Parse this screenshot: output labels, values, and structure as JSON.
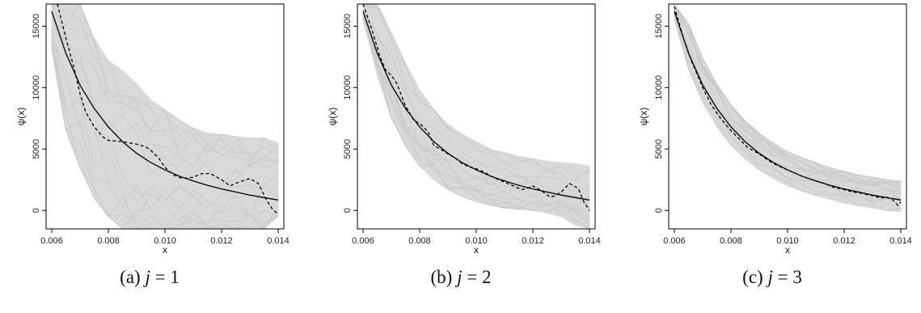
{
  "colors": {
    "band": "#d9d9d9",
    "solid_line": "#000000",
    "dashed_line": "#000000",
    "frame": "#000000"
  },
  "chart_data": [
    {
      "type": "line",
      "caption_prefix": "(a)",
      "caption_var": "j",
      "caption_eq": " = 1",
      "xlabel": "x",
      "ylabel": "ψ(x)",
      "xlim": [
        0.0058,
        0.0142
      ],
      "ylim": [
        -1500,
        16800
      ],
      "x_ticks": [
        "0.006",
        "0.008",
        "0.010",
        "0.012",
        "0.014"
      ],
      "y_ticks": [
        "0",
        "5000",
        "10000",
        "15000"
      ],
      "band_color": "#d9d9d9",
      "band_x": [
        0.006,
        0.0065,
        0.007,
        0.0075,
        0.008,
        0.0085,
        0.009,
        0.0095,
        0.01,
        0.0105,
        0.011,
        0.0115,
        0.012,
        0.0125,
        0.013,
        0.0135,
        0.014
      ],
      "band_upper": [
        16800,
        16800,
        16800,
        14000,
        12200,
        11400,
        10300,
        9000,
        8200,
        7400,
        6700,
        6300,
        6200,
        6000,
        5900,
        5900,
        5500
      ],
      "band_lower": [
        13000,
        6500,
        3500,
        1000,
        -500,
        -1500,
        -1500,
        -1500,
        -1500,
        -1500,
        -1500,
        -1500,
        -1500,
        -1500,
        -1500,
        -1500,
        -500
      ],
      "series": [
        {
          "style": "solid",
          "x": [
            0.006,
            0.0065,
            0.007,
            0.0075,
            0.008,
            0.0085,
            0.009,
            0.0095,
            0.01,
            0.0105,
            0.011,
            0.0115,
            0.012,
            0.0125,
            0.013,
            0.0135,
            0.014
          ],
          "y": [
            16200,
            12800,
            10200,
            8300,
            6800,
            5600,
            4650,
            3900,
            3300,
            2800,
            2400,
            2050,
            1750,
            1500,
            1250,
            1050,
            850
          ]
        },
        {
          "style": "dashed",
          "x": [
            0.0062,
            0.0065,
            0.0068,
            0.007,
            0.0072,
            0.0075,
            0.0078,
            0.008,
            0.0085,
            0.009,
            0.0093,
            0.0095,
            0.0098,
            0.01,
            0.0103,
            0.0106,
            0.011,
            0.0113,
            0.0116,
            0.012,
            0.0123,
            0.0126,
            0.013,
            0.0133,
            0.0136,
            0.0138,
            0.014
          ],
          "y": [
            16800,
            14000,
            11500,
            9500,
            8000,
            6800,
            6000,
            5700,
            5600,
            5400,
            5200,
            4900,
            4200,
            3500,
            2900,
            2600,
            2700,
            3000,
            3000,
            2500,
            2000,
            2300,
            2600,
            2200,
            800,
            100,
            -300
          ]
        }
      ]
    },
    {
      "type": "line",
      "caption_prefix": "(b)",
      "caption_var": "j",
      "caption_eq": " = 2",
      "xlabel": "x",
      "ylabel": "ψ(x)",
      "xlim": [
        0.0058,
        0.0142
      ],
      "ylim": [
        -1500,
        16800
      ],
      "x_ticks": [
        "0.006",
        "0.008",
        "0.010",
        "0.012",
        "0.014"
      ],
      "y_ticks": [
        "0",
        "5000",
        "10000",
        "15000"
      ],
      "band_color": "#d9d9d9",
      "band_x": [
        0.006,
        0.0065,
        0.007,
        0.0075,
        0.008,
        0.0085,
        0.009,
        0.0095,
        0.01,
        0.0105,
        0.011,
        0.0115,
        0.012,
        0.0125,
        0.013,
        0.0135,
        0.014
      ],
      "band_upper": [
        16800,
        16800,
        14500,
        12000,
        9800,
        8200,
        7000,
        6200,
        5600,
        5000,
        4700,
        4400,
        4200,
        4000,
        3900,
        3800,
        3600
      ],
      "band_lower": [
        15500,
        11000,
        7500,
        5200,
        3600,
        2500,
        1700,
        1100,
        700,
        400,
        200,
        100,
        0,
        -200,
        -500,
        -1200,
        -1500
      ],
      "series": [
        {
          "style": "solid",
          "x": [
            0.006,
            0.0065,
            0.007,
            0.0075,
            0.008,
            0.0085,
            0.009,
            0.0095,
            0.01,
            0.0105,
            0.011,
            0.0115,
            0.012,
            0.0125,
            0.013,
            0.0135,
            0.014
          ],
          "y": [
            16200,
            12800,
            10200,
            8300,
            6800,
            5600,
            4650,
            3900,
            3300,
            2800,
            2400,
            2050,
            1750,
            1500,
            1250,
            1050,
            850
          ]
        },
        {
          "style": "dashed",
          "x": [
            0.006,
            0.0063,
            0.0066,
            0.0068,
            0.007,
            0.0072,
            0.0075,
            0.0078,
            0.008,
            0.0083,
            0.0085,
            0.0088,
            0.009,
            0.0093,
            0.0095,
            0.0098,
            0.01,
            0.0103,
            0.0106,
            0.011,
            0.0113,
            0.0116,
            0.0118,
            0.012,
            0.0123,
            0.0126,
            0.0128,
            0.013,
            0.0133,
            0.0136,
            0.0138,
            0.014
          ],
          "y": [
            16800,
            14800,
            12500,
            11400,
            11000,
            10300,
            8500,
            7300,
            7100,
            6400,
            5300,
            4900,
            4600,
            4200,
            3800,
            3500,
            3400,
            3100,
            2700,
            2300,
            2000,
            1700,
            1800,
            2000,
            1600,
            1100,
            1200,
            1500,
            2200,
            1800,
            700,
            0
          ]
        }
      ]
    },
    {
      "type": "line",
      "caption_prefix": "(c)",
      "caption_var": "j",
      "caption_eq": " = 3",
      "xlabel": "x",
      "ylabel": "ψ(x)",
      "xlim": [
        0.0058,
        0.0142
      ],
      "ylim": [
        -1500,
        16800
      ],
      "x_ticks": [
        "0.006",
        "0.008",
        "0.010",
        "0.012",
        "0.014"
      ],
      "y_ticks": [
        "0",
        "5000",
        "10000",
        "15000"
      ],
      "band_color": "#d9d9d9",
      "band_x": [
        0.006,
        0.0065,
        0.007,
        0.0075,
        0.008,
        0.0085,
        0.009,
        0.0095,
        0.01,
        0.0105,
        0.011,
        0.0115,
        0.012,
        0.0125,
        0.013,
        0.0135,
        0.014
      ],
      "band_upper": [
        16800,
        15200,
        12400,
        10300,
        8600,
        7300,
        6300,
        5500,
        4800,
        4300,
        3900,
        3500,
        3200,
        2900,
        2700,
        2500,
        2400
      ],
      "band_lower": [
        15500,
        11500,
        8800,
        6800,
        5300,
        4200,
        3300,
        2600,
        2000,
        1600,
        1200,
        900,
        600,
        400,
        200,
        0,
        -100
      ],
      "series": [
        {
          "style": "solid",
          "x": [
            0.006,
            0.0065,
            0.007,
            0.0075,
            0.008,
            0.0085,
            0.009,
            0.0095,
            0.01,
            0.0105,
            0.011,
            0.0115,
            0.012,
            0.0125,
            0.013,
            0.0135,
            0.014
          ],
          "y": [
            16200,
            12800,
            10200,
            8300,
            6800,
            5600,
            4650,
            3900,
            3300,
            2800,
            2400,
            2050,
            1750,
            1500,
            1250,
            1050,
            850
          ]
        },
        {
          "style": "dashed",
          "x": [
            0.006,
            0.0063,
            0.0066,
            0.007,
            0.0073,
            0.0076,
            0.008,
            0.0083,
            0.0086,
            0.009,
            0.0093,
            0.0096,
            0.01,
            0.0103,
            0.0106,
            0.011,
            0.0113,
            0.0116,
            0.012,
            0.0123,
            0.0126,
            0.013,
            0.0133,
            0.0135,
            0.0137,
            0.0139,
            0.014
          ],
          "y": [
            16600,
            14200,
            12200,
            10000,
            8600,
            7600,
            6500,
            5800,
            5100,
            4600,
            4100,
            3700,
            3300,
            3000,
            2700,
            2400,
            2200,
            1900,
            1700,
            1500,
            1400,
            1200,
            1000,
            1100,
            900,
            400,
            700
          ]
        }
      ]
    }
  ]
}
